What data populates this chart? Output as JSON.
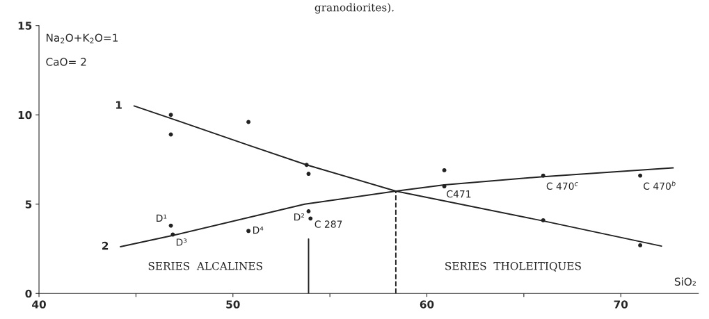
{
  "chart_data": {
    "type": "line",
    "title": "granodiorites).",
    "xlabel": "SiO₂",
    "xlim": [
      40,
      74
    ],
    "ylim": [
      0,
      15
    ],
    "xticks": [
      40,
      {
        "value": 45,
        "label": null
      },
      50,
      {
        "value": 55,
        "label": null
      },
      60,
      {
        "value": 65,
        "label": null
      },
      70
    ],
    "yticks": [
      0,
      5,
      10,
      15
    ],
    "grid": false,
    "legend": false,
    "series": [
      {
        "name": "1",
        "color": "#222222",
        "marker": "none",
        "line_style": "solid",
        "x": [
          44.9,
          46.8,
          50.8,
          53.8,
          58.4,
          66.0,
          72.1
        ],
        "values": [
          10.5,
          9.8,
          8.3,
          7.2,
          5.73,
          4.06,
          2.65
        ]
      },
      {
        "name": "2",
        "color": "#222222",
        "marker": "none",
        "line_style": "solid",
        "x": [
          44.2,
          46.9,
          53.7,
          58.4,
          60.9,
          66.0,
          72.7
        ],
        "values": [
          2.62,
          3.25,
          5.0,
          5.73,
          6.08,
          6.54,
          7.03
        ]
      },
      {
        "type": "scatter",
        "color": "#222222",
        "marker": "circle",
        "x": [
          46.8,
          46.8,
          50.8,
          53.8,
          53.9,
          46.8,
          46.9,
          50.8,
          53.9,
          54.0,
          60.9,
          60.9,
          66.0,
          71.0,
          66.0,
          71.0
        ],
        "values": [
          10.0,
          8.9,
          9.6,
          7.2,
          6.7,
          3.8,
          3.3,
          3.5,
          4.6,
          4.2,
          6.9,
          6.0,
          6.6,
          6.6,
          4.1,
          2.7
        ]
      },
      {
        "type": "line",
        "color": "#222222",
        "marker": "none",
        "line_style": "dashed",
        "x": [
          58.4,
          58.4
        ],
        "values": [
          0,
          5.73
        ]
      },
      {
        "type": "line",
        "color": "#222222",
        "marker": "none",
        "line_style": "solid",
        "x": [
          53.9,
          53.9
        ],
        "values": [
          0,
          3.05
        ]
      }
    ],
    "annotations": [
      "Na$_{2}$O+K$_{2}$O=1",
      "CaO= 2",
      {
        "text": "D¹",
        "x": 46.8,
        "y": 3.8
      },
      {
        "text": "D³",
        "x": 46.9,
        "y": 3.3
      },
      {
        "text": "D⁴",
        "x": 50.8,
        "y": 3.5
      },
      {
        "text": "D²",
        "x": 53.9,
        "y": 4.6
      },
      {
        "text": "C 287",
        "x": 54.0,
        "y": 4.2
      },
      {
        "text": "C471",
        "x": 60.9,
        "y": 6.0
      },
      {
        "text": "C 470$^{c}$",
        "x": 66.0,
        "y": 6.6
      },
      {
        "text": "C 470$^{b}$",
        "x": 71.0,
        "y": 6.6
      },
      "SERIES  ALCALINES",
      "SERIES  THOLEITIQUES"
    ]
  }
}
